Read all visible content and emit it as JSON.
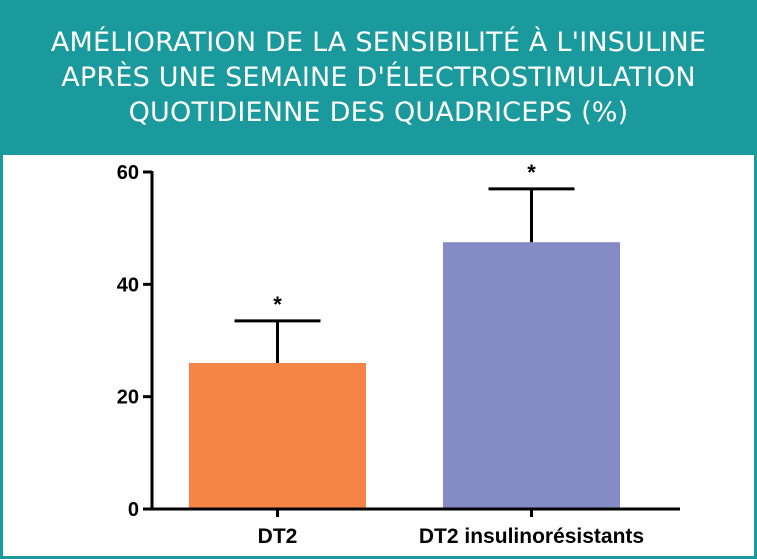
{
  "header": {
    "title_lines": [
      "AMÉLIORATION DE LA SENSIBILITÉ À L'INSULINE",
      "APRÈS UNE SEMAINE D'ÉLECTROSTIMULATION",
      "QUOTIDIENNE DES QUADRICEPS (%)"
    ],
    "banner_color": "#1a9a9c"
  },
  "chart_data": {
    "type": "bar",
    "title": "AMÉLIORATION DE LA SENSIBILITÉ À L'INSULINE APRÈS UNE SEMAINE D'ÉLECTROSTIMULATION QUOTIDIENNE DES QUADRICEPS (%)",
    "xlabel": "",
    "ylabel": "",
    "categories": [
      "DT2",
      "DT2 insulinorésistants"
    ],
    "values": [
      26,
      47.5
    ],
    "error_upper": [
      33.5,
      57
    ],
    "significance": [
      "*",
      "*"
    ],
    "bar_colors": [
      "#f58446",
      "#858bc5"
    ],
    "ylim": [
      0,
      60
    ],
    "yticks": [
      "0",
      "20",
      "40",
      "60"
    ],
    "grid": false,
    "legend": "none"
  }
}
